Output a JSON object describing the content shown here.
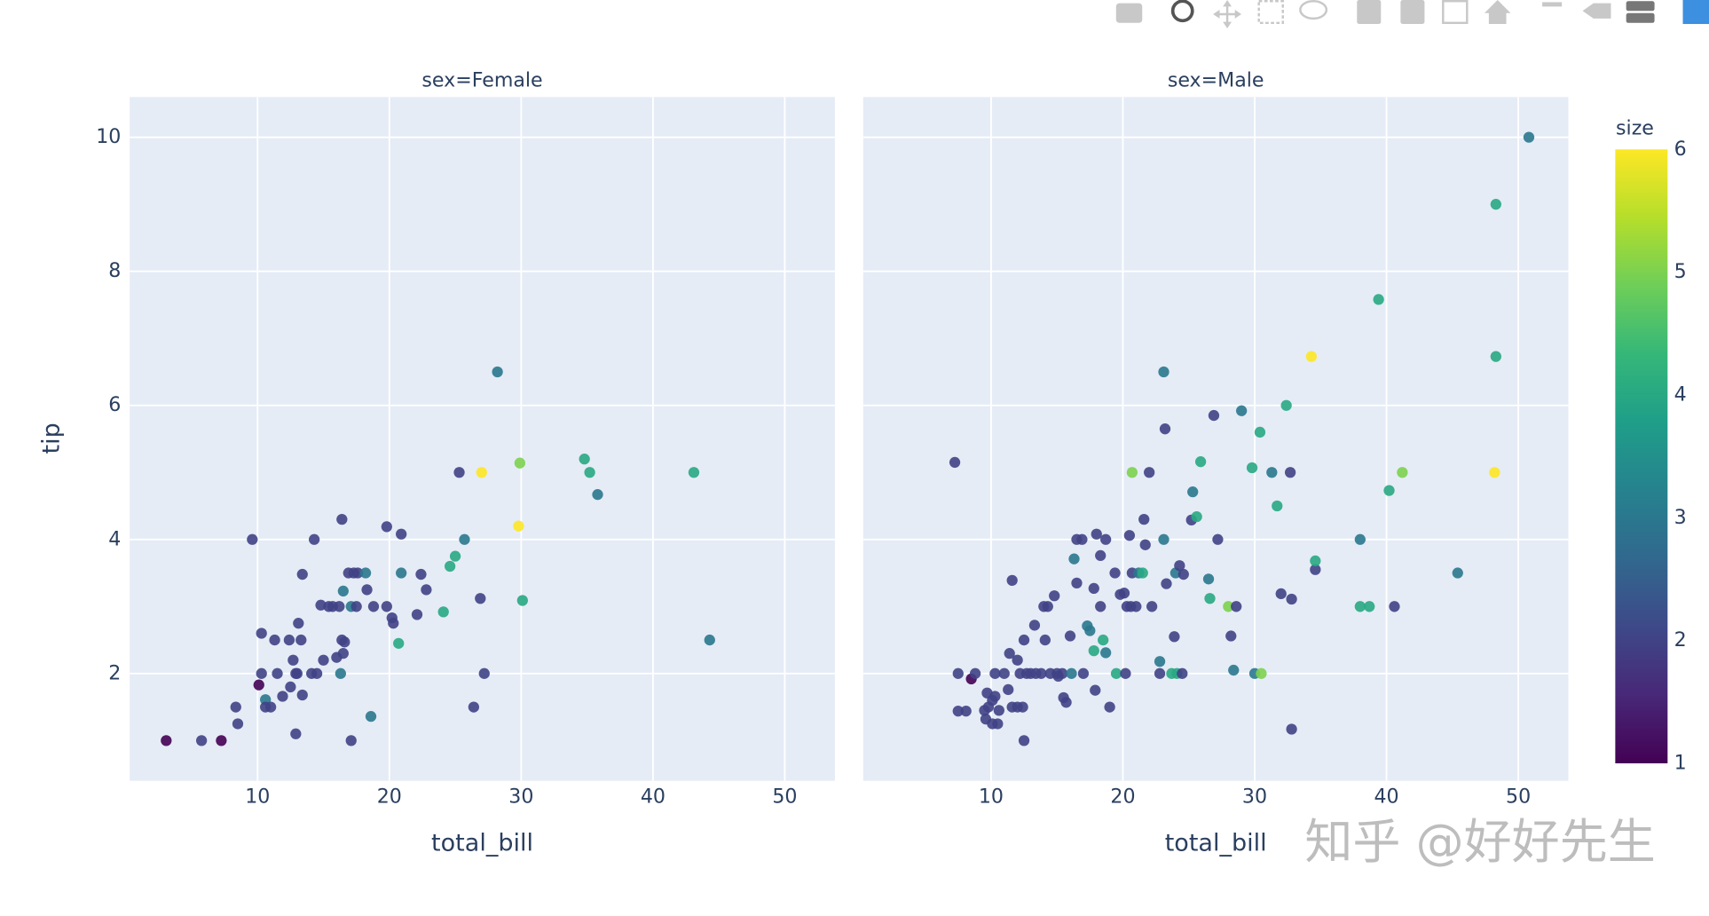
{
  "chart_data": {
    "type": "scatter",
    "xlabel": "total_bill",
    "ylabel": "tip",
    "xlim": [
      0.3,
      53.8
    ],
    "ylim": [
      0.4,
      10.6
    ],
    "xticks": [
      10,
      20,
      30,
      40,
      50
    ],
    "yticks": [
      2,
      4,
      6,
      8,
      10
    ],
    "grid": true,
    "colorbar": {
      "title": "size",
      "lim": [
        1,
        6
      ],
      "ticks": [
        1,
        2,
        3,
        4,
        5,
        6
      ],
      "colorscale": [
        "#440154",
        "#482878",
        "#3e4989",
        "#31688e",
        "#26828e",
        "#1f9e89",
        "#35b779",
        "#6ece58",
        "#b5de2b",
        "#fde725"
      ]
    },
    "facets": [
      {
        "title": "sex=Female",
        "x": [
          3.07,
          5.75,
          7.25,
          8.35,
          8.5,
          9.6,
          10.1,
          10.3,
          10.3,
          10.6,
          10.6,
          11,
          11.3,
          11.5,
          11.9,
          12.4,
          12.5,
          12.7,
          12.9,
          12.9,
          13.1,
          13.3,
          13.4,
          13.4,
          13,
          14.1,
          14.3,
          14.5,
          14.8,
          15,
          15.4,
          15.7,
          16,
          16.2,
          16.3,
          16.4,
          16.4,
          16.5,
          16.6,
          16.5,
          16.9,
          17.1,
          17.1,
          17.3,
          17.5,
          17.6,
          18.2,
          18.3,
          18.6,
          18.8,
          19.8,
          19.8,
          20.2,
          20.3,
          20.7,
          20.9,
          20.9,
          22.1,
          22.4,
          22.8,
          24.1,
          24.6,
          25,
          25.3,
          25.7,
          26.4,
          26.9,
          27,
          27.2,
          28.2,
          29.8,
          29.9,
          30.1,
          34.8,
          35.2,
          35.8,
          43.1,
          44.3
        ],
        "values": [
          1,
          1,
          1,
          1.5,
          1.25,
          4,
          1.83,
          2.6,
          2,
          1.61,
          1.5,
          1.5,
          2.5,
          2,
          1.66,
          2.5,
          1.8,
          2.2,
          1.1,
          2,
          2.75,
          2.5,
          3.48,
          1.68,
          2,
          2,
          4,
          2,
          3.02,
          2.2,
          3,
          3,
          2.24,
          3,
          2,
          4.3,
          2.5,
          2.3,
          2.47,
          3.23,
          3.5,
          3,
          1,
          3.5,
          3,
          3.5,
          3.5,
          3.25,
          1.36,
          3,
          3,
          4.19,
          2.83,
          2.75,
          2.45,
          4.08,
          3.5,
          2.88,
          3.48,
          3.25,
          2.92,
          3.6,
          3.75,
          5,
          4,
          1.5,
          3.12,
          5,
          2,
          6.5,
          4.2,
          5.14,
          3.09,
          5.2,
          5,
          4.67,
          5,
          2.5
        ],
        "size": [
          1,
          2,
          1,
          2,
          2,
          2,
          1,
          2,
          2,
          3,
          2,
          2,
          2,
          2,
          2,
          2,
          2,
          2,
          2,
          2,
          2,
          2,
          2,
          2,
          2,
          2,
          2,
          2,
          2,
          2,
          2,
          2,
          2,
          2,
          3,
          2,
          2,
          2,
          2,
          3,
          2,
          3,
          2,
          2,
          2,
          2,
          3,
          2,
          3,
          2,
          2,
          2,
          2,
          2,
          4,
          2,
          3,
          2,
          2,
          2,
          4,
          4,
          4,
          2,
          3,
          2,
          2,
          6,
          2,
          3,
          6,
          5,
          4,
          4,
          4,
          3,
          4,
          3
        ]
      },
      {
        "title": "sex=Male",
        "x": [
          7.25,
          7.5,
          7.5,
          8.1,
          8.5,
          8.8,
          9.5,
          9.6,
          9.7,
          9.8,
          10.1,
          10.1,
          10.3,
          10.3,
          10.5,
          10.6,
          11,
          11.3,
          11.4,
          11.6,
          11.6,
          12,
          12,
          12.2,
          12.4,
          12.5,
          12.5,
          12.7,
          13,
          13.3,
          13.4,
          13.8,
          14,
          14.1,
          14.3,
          14.5,
          14.8,
          15,
          15.1,
          15.4,
          15.5,
          15.7,
          16,
          16.1,
          16.3,
          16.5,
          16.5,
          16.9,
          17,
          17.3,
          17.5,
          17.8,
          17.8,
          17.9,
          18,
          18.3,
          18.3,
          18.5,
          18.7,
          18.7,
          19,
          19.4,
          19.5,
          19.8,
          20.1,
          20.2,
          20.3,
          20.5,
          20.6,
          20.7,
          20.7,
          21,
          21.2,
          21.5,
          21.6,
          21.7,
          22,
          22.2,
          22.8,
          22.8,
          23.1,
          23.1,
          23.2,
          23.3,
          23.7,
          23.9,
          24,
          24.1,
          24.3,
          24.5,
          24.6,
          25.2,
          25.3,
          25.6,
          25.9,
          26.5,
          26.6,
          26.9,
          27.2,
          28,
          28.2,
          28.4,
          28.6,
          29,
          29.8,
          30,
          30.4,
          30.5,
          31.3,
          31.7,
          32,
          32.4,
          32.7,
          32.8,
          32.8,
          34.3,
          34.6,
          34.6,
          38,
          38,
          38.7,
          39.4,
          40.2,
          40.6,
          41.2,
          45.4,
          48.2,
          48.3,
          48.3,
          50.8
        ],
        "values": [
          5.15,
          1.44,
          2,
          1.44,
          1.92,
          2,
          1.45,
          1.32,
          1.71,
          1.5,
          1.25,
          1.6,
          2,
          1.66,
          1.25,
          1.45,
          2,
          1.76,
          2.3,
          1.5,
          3.39,
          1.5,
          2.2,
          2,
          1.5,
          1,
          2.5,
          2,
          2,
          2.72,
          2,
          2,
          3,
          2.5,
          3,
          2,
          3.16,
          2,
          1.96,
          2,
          1.64,
          1.57,
          2.56,
          2,
          3.71,
          3.35,
          4,
          4,
          2,
          2.71,
          2.64,
          3.27,
          2.34,
          1.75,
          4.08,
          3.76,
          3,
          2.5,
          4,
          2.31,
          1.5,
          3.5,
          2,
          3.18,
          3.2,
          2,
          3,
          4.06,
          3,
          5,
          3.5,
          3,
          3.5,
          3.5,
          4.3,
          3.92,
          5,
          3,
          2,
          2.18,
          4,
          6.5,
          5.65,
          3.34,
          2,
          2.55,
          3.5,
          2,
          3.61,
          2,
          3.48,
          4.29,
          4.71,
          4.34,
          5.16,
          3.41,
          3.12,
          5.85,
          4,
          3,
          2.56,
          2.05,
          3,
          5.92,
          5.07,
          2,
          5.6,
          2,
          5,
          4.5,
          3.19,
          6,
          5,
          3.11,
          1.17,
          6.73,
          3.55,
          3.68,
          4,
          3,
          3,
          7.58,
          4.73,
          3,
          5,
          3.5,
          5,
          6.73,
          9,
          10
        ],
        "size": [
          2,
          2,
          2,
          2,
          1,
          2,
          2,
          2,
          2,
          2,
          2,
          2,
          2,
          2,
          2,
          2,
          2,
          2,
          2,
          2,
          2,
          2,
          2,
          2,
          2,
          2,
          2,
          2,
          2,
          2,
          2,
          2,
          2,
          2,
          2,
          2,
          2,
          2,
          2,
          2,
          2,
          2,
          2,
          3,
          3,
          2,
          2,
          2,
          2,
          3,
          3,
          2,
          4,
          2,
          2,
          2,
          2,
          4,
          2,
          3,
          2,
          2,
          4,
          2,
          2,
          2,
          2,
          2,
          2,
          5,
          2,
          2,
          3,
          4,
          2,
          2,
          2,
          2,
          2,
          3,
          3,
          3,
          2,
          2,
          4,
          2,
          3,
          4,
          2,
          2,
          2,
          2,
          3,
          4,
          4,
          3,
          4,
          2,
          2,
          5,
          2,
          3,
          2,
          3,
          4,
          3,
          4,
          5,
          3,
          4,
          2,
          4,
          2,
          2,
          2,
          6,
          2,
          4,
          3,
          4,
          4,
          4,
          4,
          2,
          5,
          3,
          6,
          4,
          4,
          3
        ]
      }
    ]
  },
  "watermark": "知乎 @好好先生"
}
